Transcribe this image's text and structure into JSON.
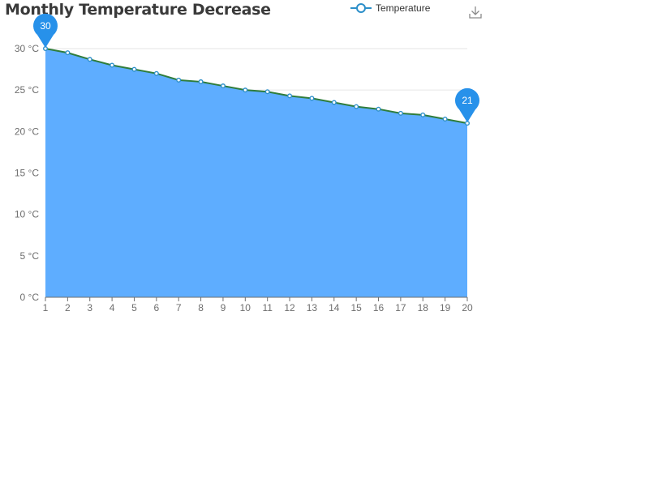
{
  "chart_data": {
    "type": "area",
    "title": "Monthly Temperature Decrease",
    "x": [
      "1",
      "2",
      "3",
      "4",
      "5",
      "6",
      "7",
      "8",
      "9",
      "10",
      "11",
      "12",
      "13",
      "14",
      "15",
      "16",
      "17",
      "18",
      "19",
      "20"
    ],
    "series": [
      {
        "name": "Temperature",
        "values": [
          30,
          29.5,
          28.7,
          28,
          27.5,
          27,
          26.2,
          26,
          25.5,
          25,
          24.8,
          24.3,
          24,
          23.5,
          23,
          22.7,
          22.2,
          22,
          21.5,
          21
        ]
      }
    ],
    "y_unit": "°C",
    "ylim": [
      0,
      30
    ],
    "yticks": [
      0,
      5,
      10,
      15,
      20,
      25,
      30
    ],
    "markers": [
      {
        "label": "30",
        "index": 0
      },
      {
        "label": "21",
        "index": 19
      }
    ],
    "grid": true,
    "legend_position": "top-center",
    "colors": {
      "area": "#5eadff",
      "line": "#2f7d3c",
      "point": "#2c8fc9",
      "pin": "#2791ea",
      "grid": "#e6e6e6",
      "axis": "#6e6e6e"
    }
  },
  "toolbar": {
    "download_icon": "download-icon"
  }
}
